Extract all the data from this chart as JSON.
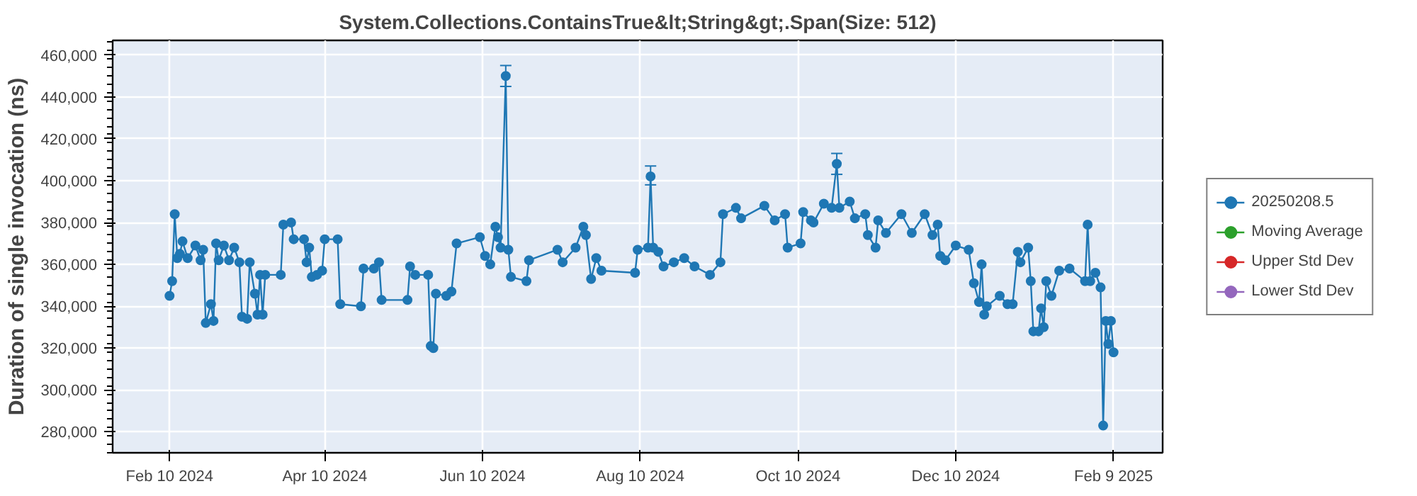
{
  "chart_data": {
    "type": "line",
    "title": "System.Collections.ContainsTrue&lt;String&gt;.Span(Size: 512)",
    "ylabel": "Duration of single invocation (ns)",
    "xlim": [
      "2024-01-19",
      "2025-02-28"
    ],
    "xticks": [
      {
        "value": "2024-02-10",
        "label": "Feb 10 2024"
      },
      {
        "value": "2024-04-10",
        "label": "Apr 10 2024"
      },
      {
        "value": "2024-06-10",
        "label": "Jun 10 2024"
      },
      {
        "value": "2024-08-10",
        "label": "Aug 10 2024"
      },
      {
        "value": "2024-10-10",
        "label": "Oct 10 2024"
      },
      {
        "value": "2024-12-10",
        "label": "Dec 10 2024"
      },
      {
        "value": "2025-02-09",
        "label": "Feb 9 2025"
      }
    ],
    "ylim": [
      270000,
      467000
    ],
    "yticks": [
      {
        "value": 280000,
        "label": "280,000"
      },
      {
        "value": 300000,
        "label": "300,000"
      },
      {
        "value": 320000,
        "label": "320,000"
      },
      {
        "value": 340000,
        "label": "340,000"
      },
      {
        "value": 360000,
        "label": "360,000"
      },
      {
        "value": 380000,
        "label": "380,000"
      },
      {
        "value": 400000,
        "label": "400,000"
      },
      {
        "value": 420000,
        "label": "420,000"
      },
      {
        "value": 440000,
        "label": "440,000"
      },
      {
        "value": 460000,
        "label": "460,000"
      }
    ],
    "grid": true,
    "legend": "right",
    "marker": "circle",
    "line_style": "solid",
    "series": [
      {
        "name": "20250208.5",
        "color": "#1f77b4",
        "x": [
          "2024-02-10",
          "2024-02-11",
          "2024-02-12",
          "2024-02-13",
          "2024-02-14",
          "2024-02-15",
          "2024-02-17",
          "2024-02-20",
          "2024-02-22",
          "2024-02-23",
          "2024-02-24",
          "2024-02-26",
          "2024-02-27",
          "2024-02-28",
          "2024-02-29",
          "2024-03-02",
          "2024-03-04",
          "2024-03-06",
          "2024-03-08",
          "2024-03-09",
          "2024-03-11",
          "2024-03-12",
          "2024-03-14",
          "2024-03-15",
          "2024-03-16",
          "2024-03-17",
          "2024-03-18",
          "2024-03-24",
          "2024-03-25",
          "2024-03-28",
          "2024-03-29",
          "2024-04-02",
          "2024-04-03",
          "2024-04-04",
          "2024-04-05",
          "2024-04-07",
          "2024-04-09",
          "2024-04-10",
          "2024-04-15",
          "2024-04-16",
          "2024-04-24",
          "2024-04-25",
          "2024-04-29",
          "2024-05-01",
          "2024-05-02",
          "2024-05-12",
          "2024-05-13",
          "2024-05-15",
          "2024-05-20",
          "2024-05-21",
          "2024-05-22",
          "2024-05-23",
          "2024-05-27",
          "2024-05-29",
          "2024-05-31",
          "2024-06-09",
          "2024-06-11",
          "2024-06-13",
          "2024-06-15",
          "2024-06-16",
          "2024-06-17",
          "2024-06-19",
          "2024-06-20",
          "2024-06-21",
          "2024-06-27",
          "2024-06-28",
          "2024-07-09",
          "2024-07-11",
          "2024-07-16",
          "2024-07-19",
          "2024-07-20",
          "2024-07-22",
          "2024-07-24",
          "2024-07-26",
          "2024-08-08",
          "2024-08-09",
          "2024-08-13",
          "2024-08-14",
          "2024-08-15",
          "2024-08-17",
          "2024-08-19",
          "2024-08-23",
          "2024-08-27",
          "2024-08-31",
          "2024-09-06",
          "2024-09-10",
          "2024-09-11",
          "2024-09-16",
          "2024-09-18",
          "2024-09-27",
          "2024-10-01",
          "2024-10-05",
          "2024-10-06",
          "2024-10-11",
          "2024-10-12",
          "2024-10-15",
          "2024-10-16",
          "2024-10-20",
          "2024-10-23",
          "2024-10-25",
          "2024-10-26",
          "2024-10-30",
          "2024-11-01",
          "2024-11-05",
          "2024-11-06",
          "2024-11-09",
          "2024-11-10",
          "2024-11-13",
          "2024-11-19",
          "2024-11-23",
          "2024-11-28",
          "2024-12-01",
          "2024-12-03",
          "2024-12-04",
          "2024-12-06",
          "2024-12-10",
          "2024-12-15",
          "2024-12-17",
          "2024-12-19",
          "2024-12-20",
          "2024-12-21",
          "2024-12-22",
          "2024-12-27",
          "2024-12-30",
          "2025-01-01",
          "2025-01-03",
          "2025-01-04",
          "2025-01-07",
          "2025-01-08",
          "2025-01-09",
          "2025-01-11",
          "2025-01-12",
          "2025-01-13",
          "2025-01-14",
          "2025-01-16",
          "2025-01-19",
          "2025-01-23",
          "2025-01-29",
          "2025-01-30",
          "2025-01-31",
          "2025-02-02",
          "2025-02-04",
          "2025-02-05",
          "2025-02-06",
          "2025-02-07",
          "2025-02-08",
          "2025-02-09"
        ],
        "values": [
          345000,
          352000,
          384000,
          363000,
          365000,
          371000,
          363000,
          369000,
          362000,
          367000,
          332000,
          341000,
          333000,
          370000,
          362000,
          369000,
          362000,
          368000,
          361000,
          335000,
          334000,
          361000,
          346000,
          336000,
          355000,
          336000,
          355000,
          355000,
          379000,
          380000,
          372000,
          372000,
          361000,
          368000,
          354000,
          355000,
          357000,
          372000,
          372000,
          341000,
          340000,
          358000,
          358000,
          361000,
          343000,
          343000,
          359000,
          355000,
          355000,
          321000,
          320000,
          346000,
          345000,
          347000,
          370000,
          373000,
          364000,
          360000,
          378000,
          373000,
          368000,
          450000,
          367000,
          354000,
          352000,
          362000,
          367000,
          361000,
          368000,
          378000,
          374000,
          353000,
          363000,
          357000,
          356000,
          367000,
          368000,
          402000,
          368000,
          366000,
          359000,
          361000,
          363000,
          359000,
          355000,
          361000,
          384000,
          387000,
          382000,
          388000,
          381000,
          384000,
          368000,
          370000,
          385000,
          381000,
          380000,
          389000,
          387000,
          408000,
          387000,
          390000,
          382000,
          384000,
          374000,
          368000,
          381000,
          375000,
          384000,
          375000,
          384000,
          374000,
          379000,
          364000,
          362000,
          369000,
          367000,
          351000,
          342000,
          360000,
          336000,
          340000,
          345000,
          341000,
          341000,
          366000,
          361000,
          368000,
          352000,
          328000,
          328000,
          339000,
          330000,
          352000,
          345000,
          357000,
          358000,
          352000,
          379000,
          352000,
          356000,
          349000,
          283000,
          333000,
          322000,
          333000,
          318000
        ],
        "errors": [
          null,
          null,
          null,
          null,
          null,
          null,
          null,
          null,
          null,
          null,
          null,
          null,
          null,
          null,
          null,
          null,
          null,
          null,
          null,
          null,
          null,
          null,
          null,
          null,
          null,
          null,
          null,
          null,
          null,
          null,
          null,
          null,
          null,
          null,
          null,
          null,
          null,
          null,
          null,
          null,
          null,
          null,
          null,
          null,
          null,
          null,
          null,
          null,
          null,
          null,
          null,
          null,
          null,
          null,
          null,
          null,
          null,
          null,
          null,
          null,
          null,
          5000,
          null,
          null,
          null,
          null,
          null,
          null,
          null,
          null,
          null,
          null,
          null,
          null,
          null,
          null,
          null,
          [
            398000,
            407000
          ],
          null,
          null,
          null,
          null,
          null,
          null,
          null,
          null,
          null,
          null,
          null,
          null,
          null,
          null,
          null,
          null,
          null,
          null,
          null,
          null,
          null,
          [
            403000,
            413000
          ],
          null,
          null,
          null,
          null,
          null,
          null,
          null,
          null,
          null,
          null,
          null,
          null,
          null,
          null,
          null,
          null,
          null,
          null,
          null,
          null,
          null,
          null,
          null,
          null,
          null,
          null,
          null,
          null,
          null,
          null,
          null,
          null,
          null,
          null,
          null,
          null,
          null,
          null,
          null,
          null,
          null,
          null,
          null,
          null,
          null,
          null,
          null
        ]
      },
      {
        "name": "Moving Average",
        "color": "#2ca02c"
      },
      {
        "name": "Upper Std Dev",
        "color": "#d62728"
      },
      {
        "name": "Lower Std Dev",
        "color": "#9467bd"
      }
    ]
  }
}
